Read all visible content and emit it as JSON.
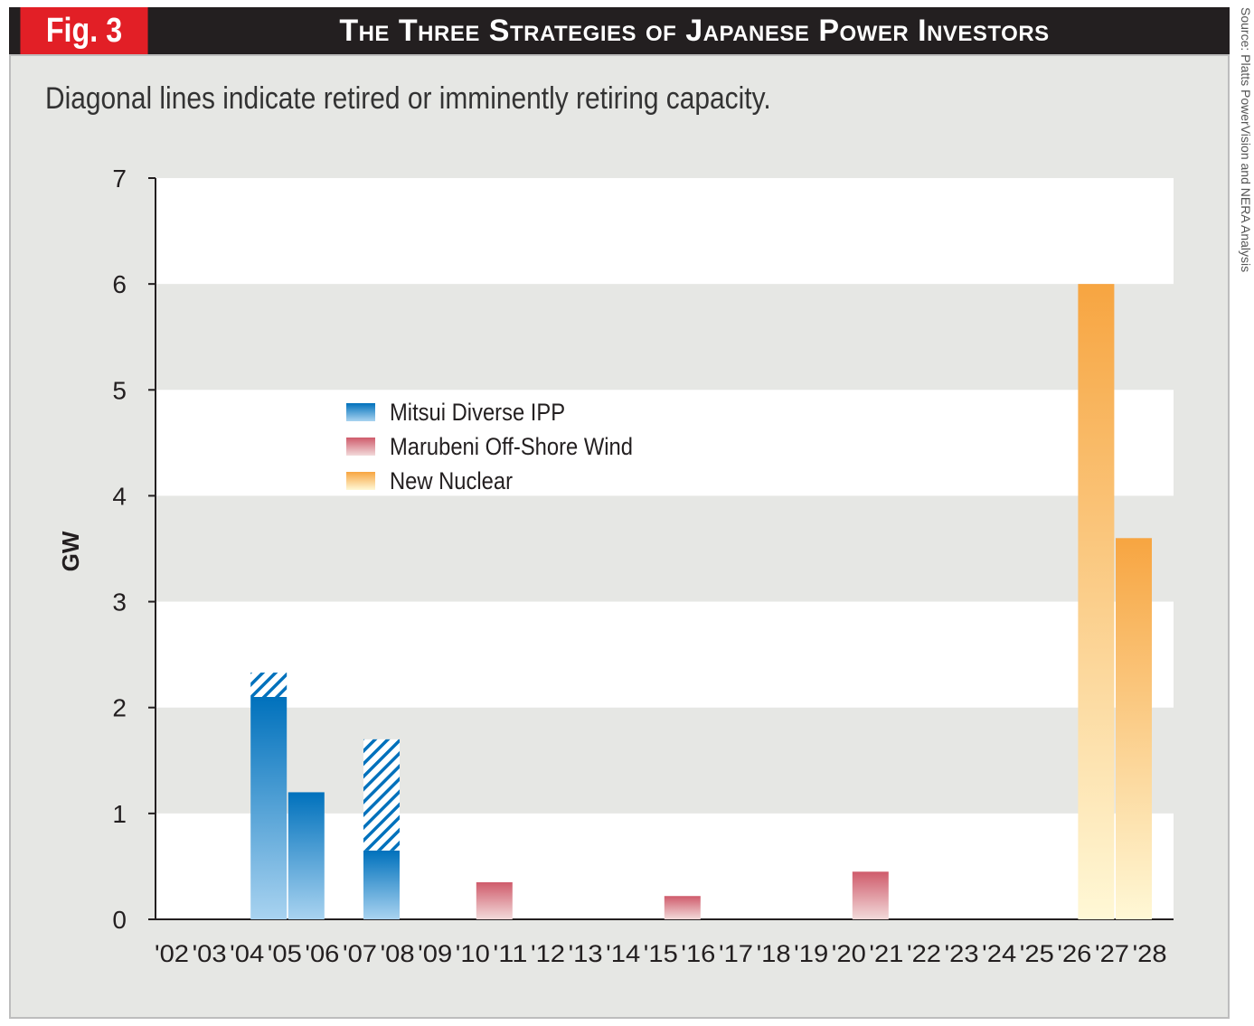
{
  "figure_label": "Fig. 3",
  "title": "The Three Strategies of Japanese Power Investors",
  "subtitle": "Diagonal lines indicate retired or imminently retiring capacity.",
  "source": "Source: Platts PowerVision and NERA Analysis",
  "chart_data": {
    "type": "bar",
    "ylabel": "GW",
    "xlabel": "",
    "ylim": [
      0,
      7
    ],
    "y_ticks": [
      0,
      1,
      2,
      3,
      4,
      5,
      6,
      7
    ],
    "grid": "alternating horizontal bands",
    "legend_position": "upper-left inside plot",
    "categories": [
      "'02",
      "'03",
      "'04",
      "'05",
      "'06",
      "'07",
      "'08",
      "'09",
      "'10",
      "'11",
      "'12",
      "'13",
      "'14",
      "'15",
      "'16",
      "'17",
      "'18",
      "'19",
      "'20",
      "'21",
      "'22",
      "'23",
      "'24",
      "'25",
      "'26",
      "'27",
      "'28"
    ],
    "series": [
      {
        "name": "Mitsui Diverse IPP",
        "color_top": "#0071bc",
        "color_bottom": "#a9d3f0",
        "points": [
          {
            "x": "'04",
            "value": 2.1,
            "retiring": 0.23
          },
          {
            "x": "'05",
            "value": 1.2,
            "retiring": 0
          },
          {
            "x": "'07",
            "value": 0.65,
            "retiring": 1.05
          }
        ]
      },
      {
        "name": "Marubeni Off-Shore Wind",
        "color_top": "#cf5b6b",
        "color_bottom": "#f2dada",
        "points": [
          {
            "x": "'10",
            "value": 0.35
          },
          {
            "x": "'15",
            "value": 0.22
          },
          {
            "x": "'20",
            "value": 0.45
          }
        ]
      },
      {
        "name": "New Nuclear",
        "color_top": "#f7a541",
        "color_bottom": "#fff8d6",
        "points": [
          {
            "x": "'26",
            "value": 6.0
          },
          {
            "x": "'27",
            "value": 3.6
          }
        ]
      }
    ]
  }
}
